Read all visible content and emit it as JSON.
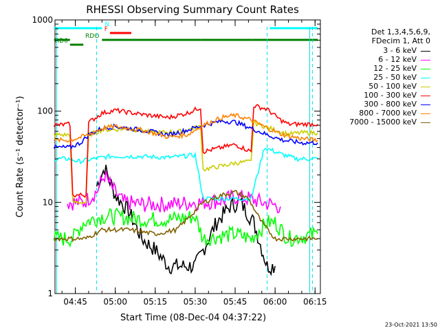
{
  "chart_data": {
    "type": "line",
    "title": "RHESSI Observing Summary Count Rates",
    "xlabel": "Start Time (08-Dec-04 04:37:22)",
    "ylabel": "Count Rate (s⁻¹ detector⁻¹)",
    "y_scale": "log",
    "ylim": [
      1,
      1000
    ],
    "xlim": [
      "04:37:22",
      "06:17:00"
    ],
    "x_ticks": [
      "04:45",
      "05:00",
      "05:15",
      "05:30",
      "05:45",
      "06:00",
      "06:15"
    ],
    "y_ticks": [
      "1",
      "10",
      "100",
      "1000"
    ],
    "legend_header": [
      "Det 1,3,4,5,6,9,",
      "FDecim 1, Att 0"
    ],
    "timestamp": "23-Oct-2021 13:50",
    "state_bars": [
      {
        "label": "N",
        "color": "#00ffff",
        "level": "top",
        "segments": [
          [
            "04:37",
            "04:55"
          ],
          [
            "05:58",
            "06:16"
          ]
        ]
      },
      {
        "label": "F",
        "color": "#ff0000",
        "level": "upper",
        "segments": [
          [
            "04:58",
            "05:06"
          ]
        ]
      },
      {
        "label": "RDO",
        "color": "#007f00",
        "level": "middle",
        "segments": [
          [
            "04:55",
            "05:32"
          ],
          [
            "05:32",
            "05:51"
          ],
          [
            "05:51",
            "06:16"
          ]
        ]
      },
      {
        "label": "RD6",
        "color": "#007f00",
        "level": "lower",
        "segments": [
          [
            "04:43",
            "04:48"
          ]
        ]
      },
      {
        "label": "",
        "color": "#007f00",
        "level": "left",
        "segments": [
          [
            "04:37",
            "04:43"
          ]
        ]
      }
    ],
    "dashed_vertical_lines": [
      "04:53",
      "05:57",
      "06:14"
    ],
    "solid_vertical_lines": [
      "04:38",
      "06:13"
    ],
    "series": [
      {
        "name": "3 - 6 keV",
        "color": "#000000",
        "points": [
          [
            "04:53",
            15
          ],
          [
            "04:56",
            24
          ],
          [
            "05:00",
            12
          ],
          [
            "05:05",
            8
          ],
          [
            "05:10",
            4
          ],
          [
            "05:15",
            3
          ],
          [
            "05:20",
            2
          ],
          [
            "05:25",
            2
          ],
          [
            "05:30",
            2
          ],
          [
            "05:33",
            3
          ],
          [
            "05:38",
            6
          ],
          [
            "05:43",
            9
          ],
          [
            "05:47",
            10
          ],
          [
            "05:52",
            6
          ],
          [
            "05:57",
            2
          ],
          [
            "06:00",
            2
          ]
        ]
      },
      {
        "name": "6 - 12 keV",
        "color": "#ff00ff",
        "points": [
          [
            "04:42",
            10
          ],
          [
            "04:48",
            10
          ],
          [
            "04:53",
            13
          ],
          [
            "04:56",
            20
          ],
          [
            "04:59",
            14
          ],
          [
            "05:03",
            10
          ],
          [
            "05:10",
            9.5
          ],
          [
            "05:20",
            9.5
          ],
          [
            "05:30",
            10
          ],
          [
            "05:33",
            10
          ],
          [
            "05:40",
            10.5
          ],
          [
            "05:45",
            11.5
          ],
          [
            "05:50",
            11
          ],
          [
            "05:55",
            10
          ],
          [
            "06:02",
            9
          ]
        ]
      },
      {
        "name": "12 - 25 keV",
        "color": "#00ff00",
        "points": [
          [
            "04:37",
            4
          ],
          [
            "04:44",
            4
          ],
          [
            "04:48",
            6
          ],
          [
            "04:55",
            7
          ],
          [
            "05:00",
            7
          ],
          [
            "05:10",
            6.5
          ],
          [
            "05:20",
            6.5
          ],
          [
            "05:30",
            7
          ],
          [
            "05:33",
            4
          ],
          [
            "05:45",
            4.5
          ],
          [
            "05:51",
            4
          ],
          [
            "05:57",
            6
          ],
          [
            "06:00",
            6
          ],
          [
            "06:05",
            4
          ],
          [
            "06:16",
            4.5
          ]
        ]
      },
      {
        "name": "25 - 50 keV",
        "color": "#00ffff",
        "points": [
          [
            "04:37",
            30
          ],
          [
            "04:43",
            30
          ],
          [
            "04:46",
            28
          ],
          [
            "04:52",
            30
          ],
          [
            "04:58",
            32
          ],
          [
            "05:08",
            32
          ],
          [
            "05:20",
            31
          ],
          [
            "05:30",
            33
          ],
          [
            "05:33",
            11
          ],
          [
            "05:45",
            11
          ],
          [
            "05:51",
            11
          ],
          [
            "05:56",
            40
          ],
          [
            "06:02",
            34
          ],
          [
            "06:08",
            30
          ],
          [
            "06:16",
            30
          ]
        ]
      },
      {
        "name": "50 - 100 keV",
        "color": "#cccc00",
        "points": [
          [
            "04:37",
            55
          ],
          [
            "04:43",
            55
          ],
          [
            "04:44",
            10
          ],
          [
            "04:49",
            10
          ],
          [
            "04:50",
            55
          ],
          [
            "04:55",
            62
          ],
          [
            "05:05",
            64
          ],
          [
            "05:15",
            58
          ],
          [
            "05:25",
            60
          ],
          [
            "05:32",
            68
          ],
          [
            "05:33",
            23
          ],
          [
            "05:40",
            25
          ],
          [
            "05:45",
            27
          ],
          [
            "05:51",
            28
          ],
          [
            "05:52",
            75
          ],
          [
            "06:00",
            62
          ],
          [
            "06:05",
            56
          ],
          [
            "06:10",
            58
          ],
          [
            "06:16",
            58
          ]
        ]
      },
      {
        "name": "100 - 300 keV",
        "color": "#ff0000",
        "points": [
          [
            "04:37",
            70
          ],
          [
            "04:43",
            72
          ],
          [
            "04:44",
            12
          ],
          [
            "04:49",
            12
          ],
          [
            "04:50",
            75
          ],
          [
            "04:55",
            95
          ],
          [
            "05:00",
            102
          ],
          [
            "05:10",
            92
          ],
          [
            "05:20",
            85
          ],
          [
            "05:27",
            95
          ],
          [
            "05:32",
            110
          ],
          [
            "05:33",
            36
          ],
          [
            "05:40",
            40
          ],
          [
            "05:45",
            43
          ],
          [
            "05:51",
            36
          ],
          [
            "05:52",
            115
          ],
          [
            "05:57",
            105
          ],
          [
            "06:02",
            80
          ],
          [
            "06:05",
            72
          ],
          [
            "06:16",
            72
          ]
        ]
      },
      {
        "name": "300 - 800 keV",
        "color": "#0000ff",
        "points": [
          [
            "04:37",
            40
          ],
          [
            "04:43",
            40
          ],
          [
            "04:47",
            45
          ],
          [
            "04:50",
            55
          ],
          [
            "04:55",
            65
          ],
          [
            "05:00",
            68
          ],
          [
            "05:10",
            62
          ],
          [
            "05:20",
            55
          ],
          [
            "05:27",
            62
          ],
          [
            "05:33",
            70
          ],
          [
            "05:40",
            78
          ],
          [
            "05:45",
            76
          ],
          [
            "05:51",
            65
          ],
          [
            "05:57",
            55
          ],
          [
            "06:03",
            48
          ],
          [
            "06:10",
            45
          ],
          [
            "06:16",
            45
          ]
        ]
      },
      {
        "name": "800 - 7000 keV",
        "color": "#ff8000",
        "points": [
          [
            "04:37",
            48
          ],
          [
            "04:43",
            48
          ],
          [
            "04:50",
            55
          ],
          [
            "04:55",
            65
          ],
          [
            "05:00",
            68
          ],
          [
            "05:10",
            62
          ],
          [
            "05:20",
            52
          ],
          [
            "05:27",
            55
          ],
          [
            "05:33",
            70
          ],
          [
            "05:40",
            85
          ],
          [
            "05:45",
            90
          ],
          [
            "05:51",
            80
          ],
          [
            "05:57",
            65
          ],
          [
            "06:03",
            55
          ],
          [
            "06:10",
            50
          ],
          [
            "06:16",
            48
          ]
        ]
      },
      {
        "name": "7000 - 15000 keV",
        "color": "#806000",
        "points": [
          [
            "04:37",
            4
          ],
          [
            "04:44",
            4
          ],
          [
            "04:49",
            4
          ],
          [
            "04:55",
            5
          ],
          [
            "05:05",
            5
          ],
          [
            "05:15",
            4.5
          ],
          [
            "05:23",
            5
          ],
          [
            "05:28",
            7
          ],
          [
            "05:33",
            10
          ],
          [
            "05:40",
            12
          ],
          [
            "05:45",
            13
          ],
          [
            "05:50",
            11
          ],
          [
            "05:55",
            6
          ],
          [
            "06:00",
            4
          ],
          [
            "06:16",
            4
          ]
        ]
      }
    ]
  }
}
